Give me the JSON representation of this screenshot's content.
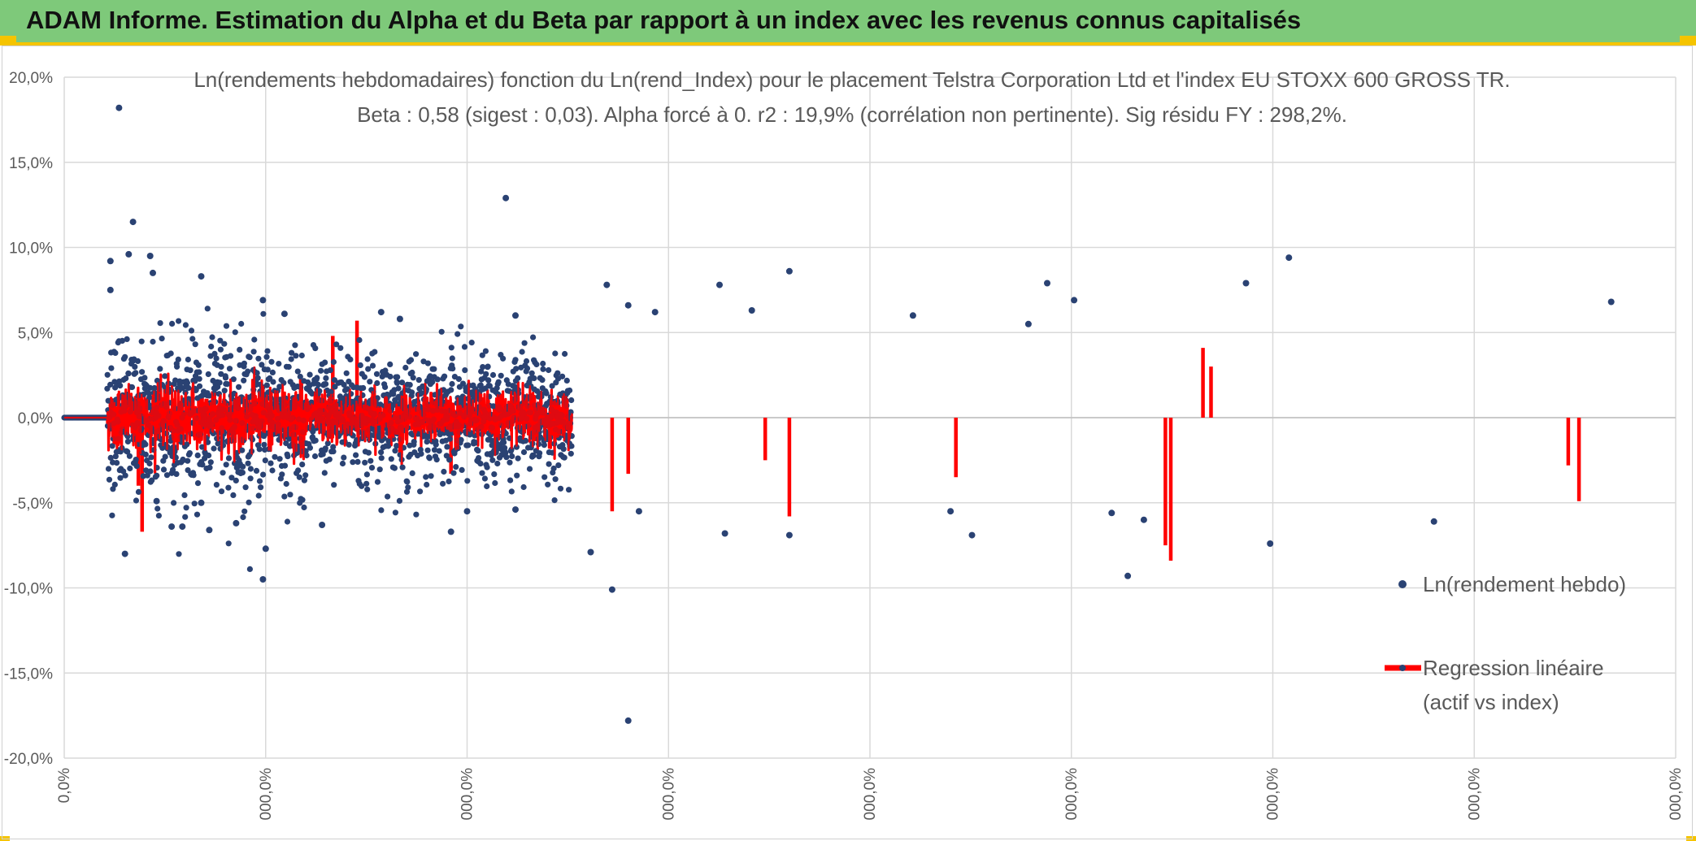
{
  "header": {
    "title": "ADAM Informe. Estimation du Alpha et du Beta par rapport à un index avec les revenus connus capitalisés",
    "background": "#7ec97a",
    "accent": "#f5c400"
  },
  "chart_data": {
    "type": "scatter",
    "title": "Ln(rendements hebdomadaires) fonction du Ln(rend_Index) pour le placement Telstra Corporation Ltd et l'index EU STOXX 600 GROSS TR.",
    "subtitle": "Beta : 0,58 (sigest : 0,03). Alpha forcé à 0. r2 : 19,9% (corrélation non pertinente). Sig résidu FY : 298,2%.",
    "beta": 0.58,
    "y_axis": {
      "min": -20,
      "max": 20,
      "step": 5,
      "tick_labels": [
        "20,0%",
        "15,0%",
        "10,0%",
        "5,0%",
        "0,0%",
        "-5,0%",
        "-10,0%",
        "-15,0%",
        "-20,0%"
      ]
    },
    "x_axis": {
      "tick_labels": [
        "0,0%",
        "000,0%",
        "000,0%",
        "000,0%",
        "000,0%",
        "000,0%",
        "000,0%",
        "000,0%",
        "000,0%"
      ]
    },
    "grid": true,
    "legend_position": "right",
    "series": [
      {
        "name": "Ln(rendement hebdo)",
        "type": "scatter",
        "color": "#2a4273"
      },
      {
        "name": "Regression linéaire (actif vs index)",
        "type": "line",
        "color": "#ff0000"
      }
    ],
    "legend": [
      {
        "label": "Ln(rendement hebdo)"
      },
      {
        "label_lines": [
          "Regression linéaire",
          "(actif vs index)"
        ]
      }
    ],
    "points": {
      "flat_from": 0,
      "flat_to": 0.08,
      "active_from": 0.08,
      "active_to": 0.945,
      "outliers": [
        [
          0.102,
          18.2
        ],
        [
          0.086,
          9.2
        ],
        [
          0.086,
          7.5
        ],
        [
          0.128,
          11.5
        ],
        [
          0.12,
          9.6
        ],
        [
          0.16,
          9.5
        ],
        [
          0.165,
          8.5
        ],
        [
          0.255,
          8.3
        ],
        [
          0.37,
          6.9
        ],
        [
          0.41,
          6.1
        ],
        [
          0.59,
          6.2
        ],
        [
          0.625,
          5.8
        ],
        [
          0.822,
          12.9
        ],
        [
          0.84,
          6.0
        ],
        [
          1.01,
          7.8
        ],
        [
          1.05,
          6.6
        ],
        [
          1.1,
          6.2
        ],
        [
          1.22,
          7.8
        ],
        [
          1.28,
          6.3
        ],
        [
          1.35,
          8.6
        ],
        [
          1.58,
          6.0
        ],
        [
          1.795,
          5.5
        ],
        [
          1.83,
          7.9
        ],
        [
          1.88,
          6.9
        ],
        [
          2.2,
          7.9
        ],
        [
          2.28,
          9.4
        ],
        [
          2.88,
          6.8
        ],
        [
          0.113,
          -8.0
        ],
        [
          0.172,
          -4.9
        ],
        [
          0.2,
          -6.4
        ],
        [
          0.22,
          -6.4
        ],
        [
          0.255,
          -5.0
        ],
        [
          0.27,
          -6.6
        ],
        [
          0.32,
          -6.2
        ],
        [
          0.37,
          -9.5
        ],
        [
          0.375,
          -7.7
        ],
        [
          0.48,
          -6.3
        ],
        [
          0.72,
          -6.7
        ],
        [
          0.75,
          -5.5
        ],
        [
          0.84,
          -5.4
        ],
        [
          0.98,
          -7.9
        ],
        [
          1.02,
          -10.1
        ],
        [
          1.05,
          -17.8
        ],
        [
          1.07,
          -5.5
        ],
        [
          1.23,
          -6.8
        ],
        [
          1.35,
          -6.9
        ],
        [
          1.65,
          -5.5
        ],
        [
          1.69,
          -6.9
        ],
        [
          1.95,
          -5.6
        ],
        [
          1.98,
          -9.3
        ],
        [
          2.01,
          -6.0
        ],
        [
          2.245,
          -7.4
        ],
        [
          2.55,
          -6.1
        ]
      ],
      "spikes": [
        [
          0.145,
          -6.7
        ],
        [
          0.138,
          -4.0
        ],
        [
          0.5,
          4.8
        ],
        [
          0.545,
          5.7
        ],
        [
          0.72,
          -3.3
        ],
        [
          1.02,
          -5.5
        ],
        [
          1.05,
          -3.3
        ],
        [
          1.35,
          -5.8
        ],
        [
          1.305,
          -2.5
        ],
        [
          1.66,
          -3.5
        ],
        [
          2.06,
          -8.4
        ],
        [
          2.05,
          -7.5
        ],
        [
          2.12,
          4.1
        ],
        [
          2.135,
          3.0
        ],
        [
          2.82,
          -4.9
        ],
        [
          2.8,
          -2.8
        ]
      ]
    }
  }
}
